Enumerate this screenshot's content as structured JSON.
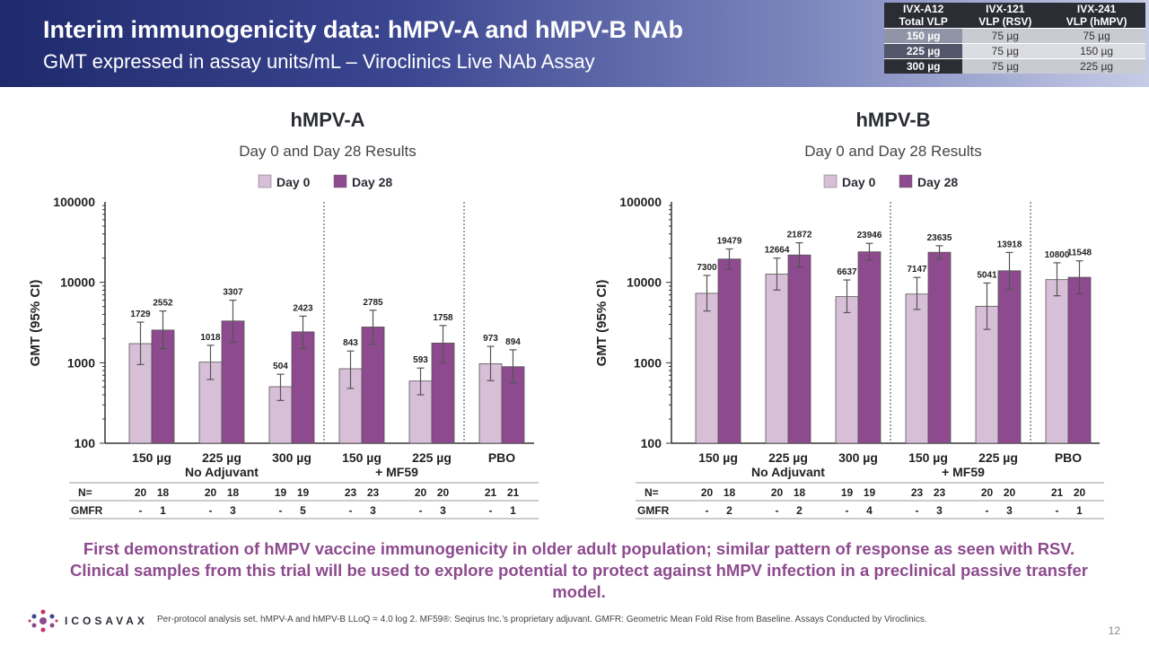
{
  "header": {
    "title": "Interim immunogenicity data: hMPV-A and hMPV-B NAb",
    "subtitle": "GMT expressed in assay units/mL – Viroclinics Live NAb Assay"
  },
  "dose_table": {
    "headers": [
      [
        "IVX-A12",
        "Total VLP"
      ],
      [
        "IVX-121",
        "VLP (RSV)"
      ],
      [
        "IVX-241",
        "VLP (hMPV)"
      ]
    ],
    "rows": [
      [
        "150 µg",
        "75 µg",
        "75 µg"
      ],
      [
        "225 µg",
        "75 µg",
        "150 µg"
      ],
      [
        "300 µg",
        "75 µg",
        "225 µg"
      ]
    ]
  },
  "chart_data": [
    {
      "type": "bar",
      "title": "hMPV-A",
      "subtitle": "Day 0 and Day 28 Results",
      "ylabel": "GMT (95% CI)",
      "yscale": "log",
      "ylim": [
        100,
        100000
      ],
      "yticks": [
        "100",
        "1000",
        "10000",
        "100000"
      ],
      "categories": [
        "150 µg",
        "225 µg",
        "300 µg",
        "150 µg",
        "225 µg",
        "PBO"
      ],
      "group_labels": [
        "No Adjuvant",
        "+ MF59"
      ],
      "series": [
        {
          "name": "Day 0",
          "color": "#d8bfd8",
          "values": [
            1729,
            1018,
            504,
            843,
            593,
            973
          ],
          "ci_low": [
            950,
            620,
            340,
            480,
            400,
            600
          ],
          "ci_high": [
            3200,
            1650,
            720,
            1400,
            860,
            1600
          ]
        },
        {
          "name": "Day 28",
          "color": "#8e4a8e",
          "values": [
            2552,
            3307,
            2423,
            2785,
            1758,
            894
          ],
          "ci_low": [
            1500,
            1800,
            1500,
            1700,
            1000,
            560
          ],
          "ci_high": [
            4400,
            6000,
            3800,
            4500,
            2900,
            1450
          ]
        }
      ],
      "table": {
        "n_label": "N=",
        "gmfr_label": "GMFR",
        "n_day0": [
          "20",
          "20",
          "19",
          "23",
          "20",
          "21"
        ],
        "n_day28": [
          "18",
          "18",
          "19",
          "23",
          "20",
          "21"
        ],
        "gmfr_day0": [
          "-",
          "-",
          "-",
          "-",
          "-",
          "-"
        ],
        "gmfr_day28": [
          "1",
          "3",
          "5",
          "3",
          "3",
          "1"
        ]
      }
    },
    {
      "type": "bar",
      "title": "hMPV-B",
      "subtitle": "Day 0 and Day 28 Results",
      "ylabel": "GMT (95% CI)",
      "yscale": "log",
      "ylim": [
        100,
        100000
      ],
      "yticks": [
        "100",
        "1000",
        "10000",
        "100000"
      ],
      "categories": [
        "150 µg",
        "225 µg",
        "300 µg",
        "150 µg",
        "225 µg",
        "PBO"
      ],
      "group_labels": [
        "No Adjuvant",
        "+ MF59"
      ],
      "series": [
        {
          "name": "Day 0",
          "color": "#d8bfd8",
          "values": [
            7300,
            12664,
            6637,
            7147,
            5041,
            10800
          ],
          "ci_low": [
            4400,
            8000,
            4200,
            4600,
            2600,
            6800
          ],
          "ci_high": [
            12200,
            20000,
            10700,
            11500,
            9800,
            17500
          ]
        },
        {
          "name": "Day 28",
          "color": "#8e4a8e",
          "values": [
            19479,
            21872,
            23946,
            23635,
            13918,
            11548
          ],
          "ci_low": [
            14500,
            15500,
            19000,
            19500,
            8200,
            7200
          ],
          "ci_high": [
            26000,
            31000,
            30500,
            28500,
            23500,
            18500
          ]
        }
      ],
      "table": {
        "n_label": "N=",
        "gmfr_label": "GMFR",
        "n_day0": [
          "20",
          "20",
          "19",
          "23",
          "20",
          "21"
        ],
        "n_day28": [
          "18",
          "18",
          "19",
          "23",
          "20",
          "20"
        ],
        "gmfr_day0": [
          "-",
          "-",
          "-",
          "-",
          "-",
          "-"
        ],
        "gmfr_day28": [
          "2",
          "2",
          "4",
          "3",
          "3",
          "1"
        ]
      }
    }
  ],
  "conclusion": "First demonstration of hMPV vaccine immunogenicity in older adult population; similar pattern of response as seen with RSV. Clinical samples from this trial will be used to explore potential to protect against hMPV infection in a preclinical passive transfer model.",
  "footer": {
    "logo_text": "ICOSAVAX",
    "footnote": "Per-protocol analysis set. hMPV-A and hMPV-B LLoQ = 4.0 log 2. MF59®: Seqirus Inc.’s proprietary adjuvant. GMFR: Geometric Mean Fold Rise from Baseline. Assays Conducted by Viroclinics.",
    "page_number": "12"
  }
}
